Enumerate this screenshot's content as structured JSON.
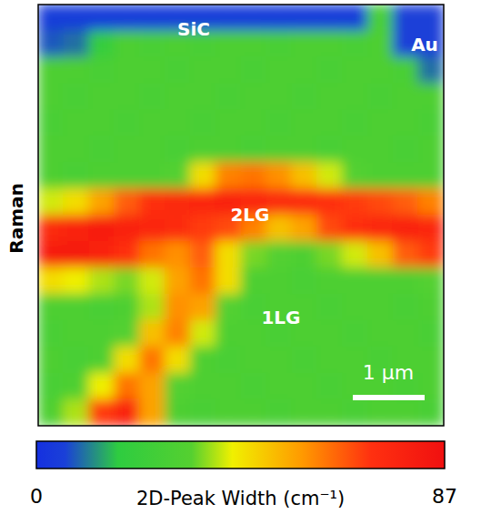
{
  "chart_data": {
    "type": "heatmap",
    "ylabel": "Raman",
    "tick_labels": false,
    "annotations": [
      "SiC",
      "Au",
      "2LG",
      "1LG"
    ],
    "scale_bar": "1 µm",
    "colorbar_label": "2D-Peak Width (cm⁻¹)",
    "colorbar_range": [
      0,
      87
    ],
    "colorbar_ticks": [
      0,
      87
    ],
    "cells": [
      [
        5,
        5,
        5,
        5,
        5,
        5,
        5,
        5,
        5,
        5,
        5,
        5,
        5,
        28,
        6,
        6
      ],
      [
        8,
        10,
        20,
        30,
        28,
        30,
        28,
        30,
        30,
        28,
        30,
        30,
        28,
        30,
        6,
        6
      ],
      [
        30,
        30,
        28,
        30,
        30,
        28,
        30,
        30,
        28,
        30,
        30,
        28,
        30,
        30,
        28,
        10
      ],
      [
        30,
        28,
        30,
        30,
        28,
        30,
        30,
        28,
        30,
        30,
        28,
        30,
        30,
        28,
        30,
        30
      ],
      [
        28,
        30,
        30,
        28,
        30,
        30,
        28,
        30,
        30,
        28,
        30,
        30,
        28,
        30,
        30,
        28
      ],
      [
        30,
        30,
        28,
        30,
        30,
        28,
        30,
        30,
        28,
        30,
        30,
        28,
        30,
        30,
        28,
        30
      ],
      [
        30,
        28,
        30,
        30,
        30,
        32,
        45,
        60,
        62,
        58,
        50,
        40,
        32,
        30,
        30,
        30
      ],
      [
        40,
        45,
        55,
        65,
        72,
        75,
        76,
        78,
        76,
        75,
        74,
        72,
        70,
        68,
        65,
        60
      ],
      [
        75,
        78,
        80,
        78,
        76,
        74,
        70,
        68,
        60,
        50,
        55,
        68,
        72,
        76,
        78,
        76
      ],
      [
        80,
        82,
        78,
        72,
        62,
        58,
        65,
        45,
        35,
        32,
        30,
        35,
        40,
        50,
        65,
        70
      ],
      [
        45,
        42,
        38,
        35,
        40,
        55,
        62,
        45,
        30,
        30,
        28,
        30,
        30,
        30,
        30,
        32
      ],
      [
        30,
        30,
        28,
        30,
        38,
        58,
        55,
        32,
        28,
        30,
        30,
        28,
        30,
        30,
        28,
        30
      ],
      [
        28,
        30,
        30,
        32,
        50,
        60,
        40,
        30,
        30,
        28,
        30,
        30,
        28,
        30,
        30,
        28
      ],
      [
        30,
        28,
        30,
        45,
        62,
        45,
        30,
        28,
        30,
        30,
        28,
        30,
        30,
        28,
        30,
        30
      ],
      [
        28,
        30,
        42,
        62,
        55,
        32,
        30,
        30,
        28,
        30,
        30,
        28,
        30,
        30,
        28,
        30
      ],
      [
        30,
        38,
        70,
        78,
        55,
        30,
        28,
        30,
        30,
        28,
        30,
        30,
        28,
        30,
        30,
        28
      ]
    ]
  }
}
